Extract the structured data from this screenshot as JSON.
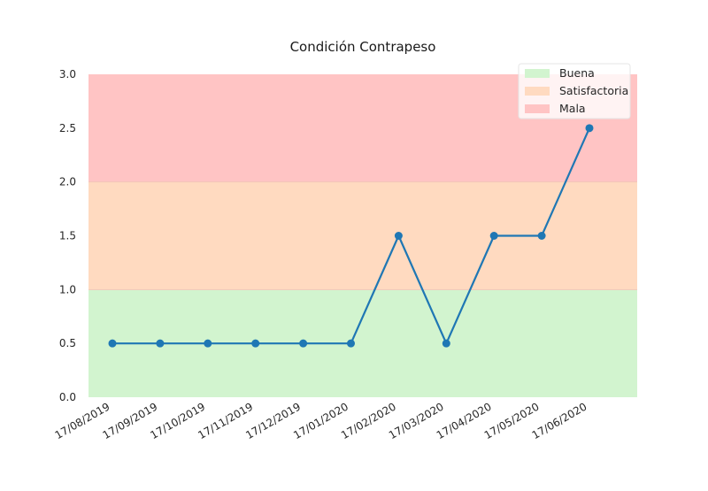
{
  "chart_data": {
    "type": "line",
    "title": "Condición Contrapeso",
    "xlabel": "",
    "ylabel": "",
    "ylim": [
      0,
      3
    ],
    "y_ticks": [
      0.0,
      0.5,
      1.0,
      1.5,
      2.0,
      2.5,
      3.0
    ],
    "categories": [
      "17/08/2019",
      "17/09/2019",
      "17/10/2019",
      "17/11/2019",
      "17/12/2019",
      "17/01/2020",
      "17/02/2020",
      "17/03/2020",
      "17/04/2020",
      "17/05/2020",
      "17/06/2020"
    ],
    "series": [
      {
        "values": [
          0.5,
          0.5,
          0.5,
          0.5,
          0.5,
          0.5,
          1.5,
          0.5,
          1.5,
          1.5,
          2.5
        ],
        "color": "#1f77b4"
      }
    ],
    "bands": [
      {
        "name": "Buena",
        "from": 0,
        "to": 1,
        "color": "#d2f4cf"
      },
      {
        "name": "Satisfactoria",
        "from": 1,
        "to": 2,
        "color": "#ffdac0"
      },
      {
        "name": "Mala",
        "from": 2,
        "to": 3,
        "color": "#ffc4c4"
      }
    ],
    "legend_position": "top-right",
    "grid": false
  }
}
